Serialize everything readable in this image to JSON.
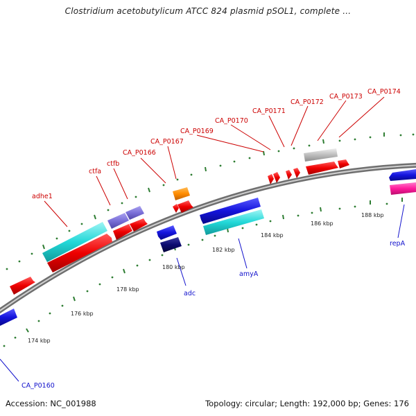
{
  "header": {
    "title": "Clostridium acetobutylicum ATCC 824 plasmid pSOL1, complete ..."
  },
  "footer": {
    "accession": "Accession: NC_001988",
    "summary": "Topology: circular; Length: 192,000 bp; Genes: 176"
  },
  "colors": {
    "backbone": "#8a8a8a",
    "tick": "#2e7d32",
    "forward_label": "#cc0000",
    "reverse_label": "#1010cc",
    "red": "#ee0000",
    "blue": "#1414dd",
    "navy": "#0b0b70",
    "cyan": "#22d8d8",
    "lavender": "#7a6fd8",
    "orange": "#ff8c00",
    "gray": "#bdbdbd",
    "magenta": "#ff1a9c"
  },
  "scale_labels": [
    "174 kbp",
    "176 kbp",
    "178 kbp",
    "180 kbp",
    "182 kbp",
    "184 kbp",
    "186 kbp",
    "188 kbp"
  ],
  "forward_labels": [
    "adhe1",
    "ctfa",
    "ctfb",
    "CA_P0166",
    "CA_P0167",
    "CA_P0169",
    "CA_P0170",
    "CA_P0171",
    "CA_P0172",
    "CA_P0173",
    "CA_P0174"
  ],
  "reverse_labels": [
    "CA_P0160",
    "adc",
    "amyA",
    "repA"
  ]
}
